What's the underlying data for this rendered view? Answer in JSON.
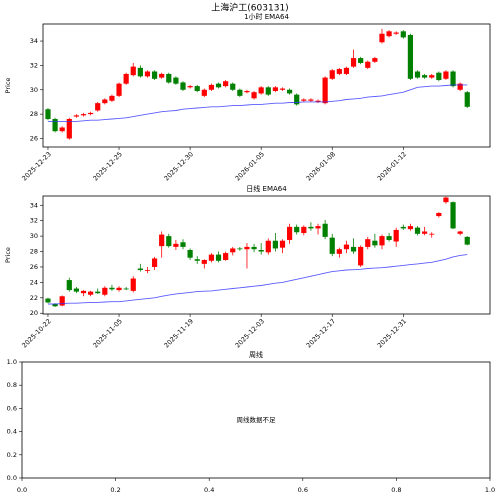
{
  "title": "上海沪工(603131)",
  "chart_data": [
    {
      "type": "candlestick",
      "title": "1小时 EMA64",
      "ylabel": "Price",
      "xlim": [
        -0.7,
        62.2
      ],
      "ylim": [
        25.3,
        35.4
      ],
      "yticks": [
        26,
        28,
        30,
        32,
        34
      ],
      "xticks": [
        {
          "value": 0,
          "label": "2025-12-23"
        },
        {
          "value": 10,
          "label": "2025-12-25"
        },
        {
          "value": 20,
          "label": "2025-12-30"
        },
        {
          "value": 30,
          "label": "2026-01-05"
        },
        {
          "value": 40,
          "label": "2026-01-08"
        },
        {
          "value": 50,
          "label": "2026-01-12"
        }
      ],
      "up_color": "#ff0000",
      "down_color": "#008000",
      "open": [
        28.4,
        27.6,
        26.6,
        26.0,
        27.8,
        27.9,
        28.0,
        28.3,
        28.9,
        29.1,
        29.5,
        30.5,
        31.2,
        31.8,
        31.1,
        31.5,
        31.0,
        31.3,
        31.0,
        30.6,
        30.2,
        30.3,
        29.5,
        30.0,
        30.5,
        30.3,
        30.5,
        30.0,
        29.8,
        29.3,
        29.7,
        30.2,
        29.9,
        30.0,
        30.0,
        29.6,
        29.1,
        29.1,
        29.0,
        28.9,
        30.9,
        31.3,
        31.3,
        31.9,
        32.6,
        31.8,
        32.3,
        33.9,
        34.4,
        34.6,
        34.8,
        34.5,
        31.5,
        31.2,
        31.0,
        31.4,
        30.9,
        31.5,
        30.0,
        29.8
      ],
      "high": [
        28.5,
        27.7,
        27.0,
        27.7,
        28.0,
        28.1,
        28.2,
        29.0,
        29.3,
        29.6,
        30.6,
        31.4,
        32.2,
        32.0,
        31.6,
        31.6,
        31.4,
        31.4,
        31.1,
        30.7,
        30.4,
        30.4,
        30.1,
        30.5,
        30.6,
        30.8,
        30.6,
        30.1,
        30.0,
        29.9,
        30.3,
        30.3,
        30.3,
        30.2,
        30.1,
        29.7,
        29.3,
        29.3,
        29.2,
        31.1,
        31.7,
        31.8,
        31.9,
        33.3,
        32.7,
        32.4,
        32.7,
        35.0,
        34.9,
        34.8,
        34.9,
        34.6,
        31.6,
        31.3,
        31.3,
        31.5,
        31.6,
        31.6,
        30.6,
        29.9
      ],
      "low": [
        27.5,
        26.5,
        26.5,
        25.9,
        27.7,
        27.8,
        27.9,
        28.2,
        28.8,
        29.0,
        29.4,
        30.4,
        31.1,
        31.0,
        31.0,
        30.8,
        30.9,
        30.5,
        30.4,
        29.9,
        30.1,
        29.8,
        29.4,
        29.9,
        30.1,
        30.2,
        29.9,
        29.4,
        29.7,
        29.2,
        29.6,
        29.5,
        29.8,
        29.9,
        29.6,
        28.7,
        29.0,
        29.0,
        28.9,
        28.8,
        30.8,
        31.2,
        31.2,
        31.8,
        32.1,
        31.7,
        32.2,
        33.8,
        34.3,
        34.5,
        34.2,
        30.8,
        30.9,
        30.9,
        30.9,
        30.7,
        30.8,
        30.2,
        29.9,
        28.5
      ],
      "close": [
        27.6,
        26.6,
        26.9,
        27.6,
        27.9,
        28.0,
        28.1,
        28.9,
        29.2,
        29.5,
        30.5,
        31.3,
        31.9,
        31.1,
        31.5,
        30.9,
        31.3,
        30.6,
        30.5,
        30.0,
        30.3,
        29.9,
        30.0,
        30.4,
        30.2,
        30.7,
        30.0,
        29.5,
        29.9,
        29.8,
        30.2,
        29.6,
        30.2,
        30.1,
        29.7,
        28.8,
        29.2,
        29.2,
        29.1,
        31.0,
        31.6,
        31.7,
        31.8,
        32.6,
        32.2,
        32.3,
        32.6,
        34.6,
        34.8,
        34.7,
        34.3,
        30.9,
        31.0,
        31.0,
        31.2,
        30.8,
        31.5,
        30.3,
        30.5,
        28.6
      ],
      "ema": {
        "color": "#3333ff",
        "values": [
          27.4,
          27.4,
          27.4,
          27.4,
          27.4,
          27.45,
          27.5,
          27.5,
          27.55,
          27.6,
          27.65,
          27.7,
          27.8,
          27.9,
          28.0,
          28.1,
          28.2,
          28.25,
          28.3,
          28.4,
          28.45,
          28.5,
          28.55,
          28.6,
          28.6,
          28.65,
          28.7,
          28.7,
          28.75,
          28.8,
          28.8,
          28.85,
          28.9,
          28.9,
          28.95,
          28.95,
          29.0,
          29.0,
          29.0,
          29.0,
          29.05,
          29.1,
          29.2,
          29.25,
          29.3,
          29.4,
          29.45,
          29.5,
          29.6,
          29.7,
          29.8,
          30.0,
          30.2,
          30.25,
          30.3,
          30.3,
          30.35,
          30.4,
          30.4,
          30.4
        ]
      }
    },
    {
      "type": "candlestick",
      "title": "日线 EMA64",
      "ylabel": "Price",
      "xlim": [
        -0.7,
        62.2
      ],
      "ylim": [
        19.9,
        35.2
      ],
      "yticks": [
        20,
        22,
        24,
        26,
        28,
        30,
        32,
        34
      ],
      "xticks": [
        {
          "value": 0,
          "label": "2025-10-22"
        },
        {
          "value": 10,
          "label": "2025-11-05"
        },
        {
          "value": 20,
          "label": "2025-11-19"
        },
        {
          "value": 30,
          "label": "2025-12-03"
        },
        {
          "value": 40,
          "label": "2025-12-17"
        },
        {
          "value": 50,
          "label": "2025-12-31"
        }
      ],
      "up_color": "#ff0000",
      "down_color": "#008000",
      "open": [
        21.9,
        21.2,
        21.0,
        24.3,
        23.2,
        22.6,
        22.4,
        22.8,
        22.4,
        23.3,
        23.0,
        23.2,
        22.9,
        25.8,
        25.5,
        26.0,
        28.7,
        30.0,
        28.6,
        29.2,
        28.2,
        27.0,
        26.4,
        26.8,
        27.6,
        26.9,
        27.9,
        28.4,
        28.3,
        28.6,
        28.2,
        27.9,
        29.4,
        28.5,
        29.5,
        31.2,
        30.4,
        31.2,
        31.0,
        31.6,
        29.8,
        27.7,
        28.3,
        28.6,
        26.2,
        28.6,
        29.4,
        28.8,
        30.0,
        29.3,
        31.2,
        30.9,
        31.1,
        30.3,
        30.2,
        32.6,
        34.4,
        34.4,
        30.3,
        29.9
      ],
      "high": [
        22.0,
        21.3,
        22.3,
        24.6,
        23.4,
        23.0,
        22.9,
        23.2,
        23.5,
        23.7,
        23.5,
        23.4,
        24.8,
        26.4,
        26.0,
        27.3,
        30.6,
        30.3,
        29.5,
        29.6,
        28.4,
        27.4,
        27.0,
        27.8,
        28.0,
        28.0,
        28.6,
        28.6,
        29.1,
        29.0,
        29.1,
        29.7,
        30.4,
        29.6,
        31.6,
        31.5,
        31.4,
        31.8,
        31.6,
        32.1,
        30.3,
        28.5,
        29.4,
        29.7,
        28.8,
        29.9,
        30.3,
        30.2,
        30.4,
        31.1,
        31.5,
        31.6,
        31.3,
        31.2,
        30.5,
        33.1,
        35.1,
        34.5,
        30.7,
        30.0
      ],
      "low": [
        21.3,
        20.8,
        20.9,
        22.8,
        22.6,
        22.2,
        22.2,
        22.5,
        22.2,
        22.9,
        22.8,
        23.0,
        22.7,
        25.4,
        25.2,
        25.6,
        27.2,
        28.5,
        28.2,
        28.3,
        26.9,
        26.4,
        25.8,
        26.6,
        26.6,
        26.8,
        27.5,
        28.1,
        25.8,
        27.9,
        27.6,
        27.6,
        28.0,
        27.8,
        29.0,
        30.2,
        30.1,
        30.7,
        30.2,
        29.6,
        27.4,
        27.2,
        27.8,
        27.7,
        26.0,
        28.3,
        28.5,
        28.3,
        29.3,
        28.6,
        30.8,
        30.7,
        30.1,
        30.1,
        29.8,
        32.4,
        34.2,
        30.9,
        30.1,
        28.8
      ],
      "close": [
        21.4,
        20.9,
        22.2,
        23.0,
        22.8,
        22.9,
        22.8,
        22.6,
        23.3,
        23.1,
        23.3,
        23.1,
        24.5,
        25.6,
        25.6,
        27.1,
        30.2,
        28.7,
        29.0,
        28.6,
        27.2,
        26.8,
        26.9,
        27.6,
        26.8,
        27.8,
        28.4,
        28.3,
        28.6,
        28.3,
        28.0,
        29.4,
        28.4,
        29.4,
        31.2,
        30.5,
        31.2,
        31.0,
        31.3,
        29.9,
        27.7,
        28.3,
        28.9,
        28.0,
        28.6,
        29.6,
        28.8,
        30.0,
        29.5,
        30.8,
        31.0,
        31.3,
        30.3,
        30.6,
        30.3,
        33.0,
        35.0,
        31.0,
        30.6,
        28.9
      ],
      "ema": {
        "color": "#3333ff",
        "values": [
          21.2,
          21.2,
          21.25,
          21.3,
          21.3,
          21.35,
          21.4,
          21.4,
          21.45,
          21.5,
          21.5,
          21.6,
          21.7,
          21.8,
          21.9,
          22.0,
          22.2,
          22.35,
          22.5,
          22.6,
          22.7,
          22.8,
          22.85,
          22.9,
          23.0,
          23.1,
          23.2,
          23.3,
          23.4,
          23.5,
          23.6,
          23.75,
          23.9,
          24.0,
          24.2,
          24.4,
          24.6,
          24.8,
          25.0,
          25.2,
          25.4,
          25.5,
          25.6,
          25.65,
          25.7,
          25.8,
          25.85,
          25.9,
          26.0,
          26.1,
          26.2,
          26.3,
          26.4,
          26.5,
          26.6,
          26.8,
          27.0,
          27.3,
          27.5,
          27.6
        ]
      }
    },
    {
      "type": "empty",
      "title": "周线",
      "annotation": "周线数据不足",
      "xlim": [
        0,
        1
      ],
      "ylim": [
        0,
        1
      ],
      "xticks": [
        {
          "value": 0,
          "label": "0.0"
        },
        {
          "value": 0.2,
          "label": "0.2"
        },
        {
          "value": 0.4,
          "label": "0.4"
        },
        {
          "value": 0.6,
          "label": "0.6"
        },
        {
          "value": 0.8,
          "label": "0.8"
        },
        {
          "value": 1,
          "label": "1.0"
        }
      ],
      "yticks": [
        {
          "value": 0,
          "label": "0.0"
        },
        {
          "value": 0.2,
          "label": "0.2"
        },
        {
          "value": 0.4,
          "label": "0.4"
        },
        {
          "value": 0.6,
          "label": "0.6"
        },
        {
          "value": 0.8,
          "label": "0.8"
        },
        {
          "value": 1,
          "label": "1.0"
        }
      ]
    }
  ]
}
